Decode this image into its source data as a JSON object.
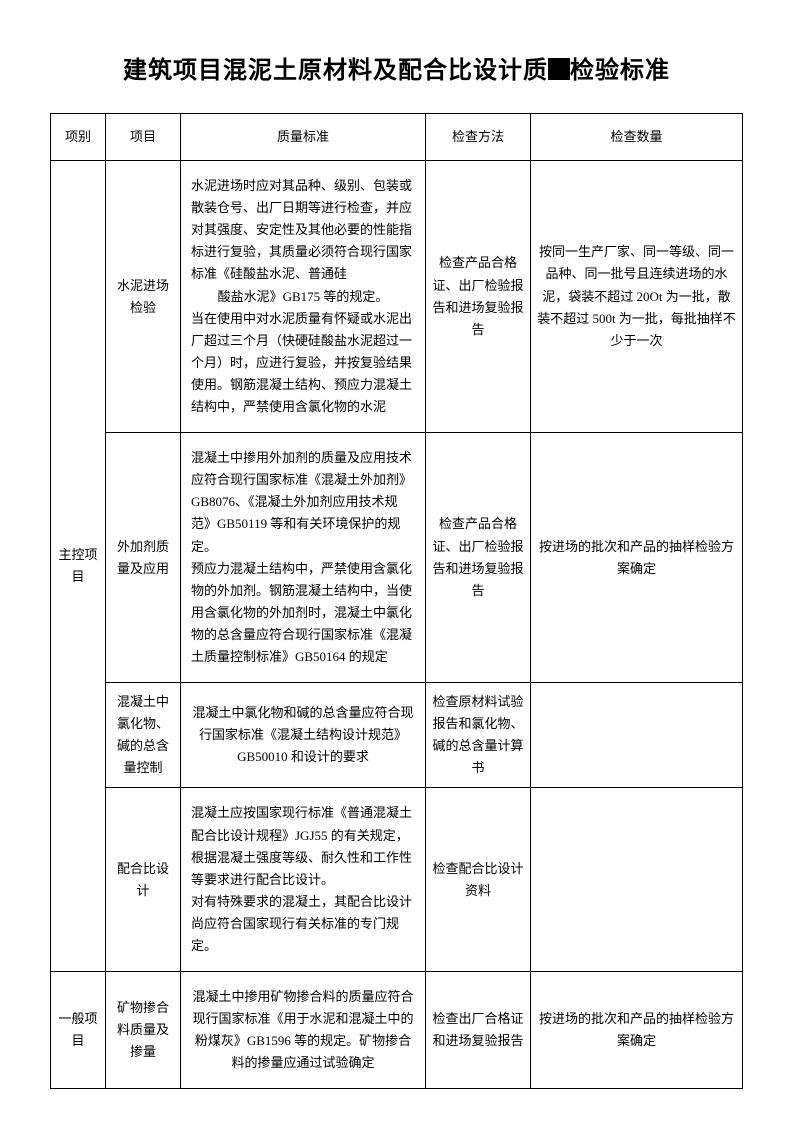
{
  "title_pre": "建筑项目混泥土原材料及配合比设计质",
  "title_post": "检验标准",
  "headers": {
    "c1": "项别",
    "c2": "项目",
    "c3": "质量标准",
    "c4": "检查方法",
    "c5": "检查数量"
  },
  "cat1": "主控项目",
  "cat2": "一般项目",
  "rows": {
    "r1": {
      "item": "水泥进场检验",
      "std_a": "水泥进场时应对其品种、级别、包装或散装仓号、出厂日期等进行检查，并应对其强度、安定性及其他必要的性能指标进行复验，其质量必须符合现行国家标准《硅酸盐水泥、普通硅",
      "std_b": "酸盐水泥》GB175 等的规定。",
      "std_c": "当在使用中对水泥质量有怀疑或水泥出厂超过三个月（快硬硅酸盐水泥超过一个月）时，应进行复验，并按复验结果使用。钢筋混凝土结构、预应力混凝土结构中，严禁使用含氯化物的水泥",
      "method": "检查产品合格证、出厂检验报告和进场复验报告",
      "qty": "按同一生产厂家、同一等级、同一品种、同一批号且连续进场的水泥，袋装不超过 20Ot 为一批，散装不超过 500t 为一批，每批抽样不少于一次"
    },
    "r2": {
      "item": "外加剂质量及应用",
      "std_a": "混凝土中掺用外加剂的质量及应用技术应符合现行国家标准《混凝土外加剂》GB8076、《混凝土外加剂应用技术规范》GB50119 等和有关环境保护的规定。",
      "std_b": "预应力混凝土结构中，严禁使用含氯化物的外加剂。钢筋混凝土结构中，当使用含氯化物的外加剂时，混凝土中氯化物的总含量应符合现行国家标准《混凝土质量控制标准》GB50164 的规定",
      "method": "检查产品合格证、出厂检验报告和进场复验报告",
      "qty": "按进场的批次和产品的抽样检验方案确定"
    },
    "r3": {
      "item": "混凝土中氯化物、碱的总含量控制",
      "std": "混凝土中氯化物和碱的总含量应符合现行国家标准《混凝土结构设计规范》GB50010 和设计的要求",
      "method": "检查原材料试验报告和氯化物、碱的总含量计算书",
      "qty": ""
    },
    "r4": {
      "item": "配合比设计",
      "std_a": "混凝土应按国家现行标准《普通混凝土配合比设计规程》JGJ55 的有关规定，根据混凝土强度等级、耐久性和工作性等要求进行配合比设计。",
      "std_b": "对有特殊要求的混凝土，其配合比设计尚应符合国家现行有关标准的专门规定。",
      "method": "检查配合比设计资料",
      "qty": ""
    },
    "r5": {
      "item": "矿物掺合料质量及掺量",
      "std": "混凝土中掺用矿物掺合料的质量应符合现行国家标准《用于水泥和混凝土中的粉煤灰》GB1596 等的规定。矿物掺合料的掺量应通过试验确定",
      "method": "检查出厂合格证和进场复验报告",
      "qty": "按进场的批次和产品的抽样检验方案确定"
    }
  }
}
